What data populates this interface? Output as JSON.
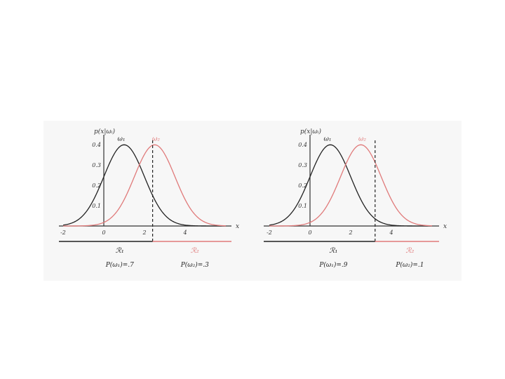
{
  "colors": {
    "omega1": "#222222",
    "omega2": "#e07a7a",
    "axis": "#333333",
    "panel": "#f7f7f7"
  },
  "chart_data": [
    {
      "type": "line",
      "ylabel": "p(x|ω_i)",
      "xlabel": "x",
      "xlim": [
        -2,
        6
      ],
      "ylim": [
        0,
        0.4
      ],
      "x_ticks": [
        "-2",
        "0",
        "2",
        "4"
      ],
      "x_tick_values": [
        -2,
        0,
        2,
        4
      ],
      "y_ticks": [
        "0.4",
        "0.3",
        "0.2",
        "0.1"
      ],
      "y_tick_values": [
        0.4,
        0.3,
        0.2,
        0.1
      ],
      "series": [
        {
          "name": "ω_1",
          "distribution": "gaussian",
          "mean": 1,
          "std": 1,
          "color": "#222222"
        },
        {
          "name": "ω_2",
          "distribution": "gaussian",
          "mean": 2.5,
          "std": 1,
          "color": "#e07a7a"
        }
      ],
      "decision_boundary": 2.4,
      "regions": [
        {
          "label": "R_1",
          "prior": "P(ω_1)=.7",
          "color": "#222222"
        },
        {
          "label": "R_2",
          "prior": "P(ω_2)=.3",
          "color": "#e07a7a"
        }
      ]
    },
    {
      "type": "line",
      "ylabel": "p(x|ω_i)",
      "xlabel": "x",
      "xlim": [
        -2,
        6
      ],
      "ylim": [
        0,
        0.4
      ],
      "x_ticks": [
        "-2",
        "0",
        "2",
        "4"
      ],
      "x_tick_values": [
        -2,
        0,
        2,
        4
      ],
      "y_ticks": [
        "0.4",
        "0.3",
        "0.2",
        "0.1"
      ],
      "y_tick_values": [
        0.4,
        0.3,
        0.2,
        0.1
      ],
      "series": [
        {
          "name": "ω_1",
          "distribution": "gaussian",
          "mean": 1,
          "std": 1,
          "color": "#222222"
        },
        {
          "name": "ω_2",
          "distribution": "gaussian",
          "mean": 2.5,
          "std": 1,
          "color": "#e07a7a"
        }
      ],
      "decision_boundary": 3.2,
      "regions": [
        {
          "label": "R_1",
          "prior": "P(ω_1)=.9",
          "color": "#222222"
        },
        {
          "label": "R_2",
          "prior": "P(ω_2)=.1",
          "color": "#e07a7a"
        }
      ]
    }
  ]
}
